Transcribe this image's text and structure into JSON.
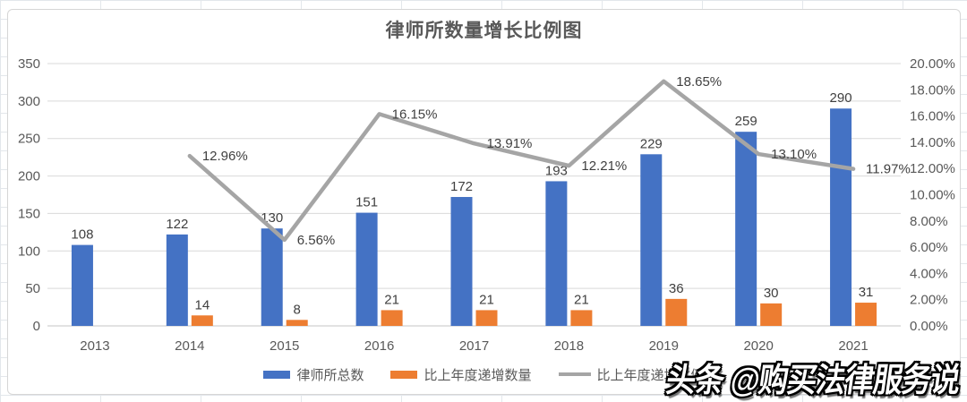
{
  "watermark": {
    "text": "头条 @购买法律服务说"
  },
  "colors": {
    "bar_total": "#4472C4",
    "bar_increase": "#ED7D31",
    "line_ratio": "#A5A5A5",
    "gridline": "#D9D9D9",
    "axis_text": "#595959",
    "data_label_text": "#404040",
    "chart_border": "#D6D6D6",
    "sheet_gridline": "#E3E7EB"
  },
  "chart_data": {
    "type": "combo",
    "title": "律师所数量增长比例图",
    "categories": [
      "2013",
      "2014",
      "2015",
      "2016",
      "2017",
      "2018",
      "2019",
      "2020",
      "2021"
    ],
    "series": [
      {
        "name": "律师所总数",
        "type": "bar",
        "axis": "left",
        "color": "#4472C4",
        "values": [
          108,
          122,
          130,
          151,
          172,
          193,
          229,
          259,
          290
        ]
      },
      {
        "name": "比上年度递增数量",
        "type": "bar",
        "axis": "left",
        "color": "#ED7D31",
        "values": [
          null,
          14,
          8,
          21,
          21,
          21,
          36,
          30,
          31
        ]
      },
      {
        "name": "比上年度递增比例",
        "type": "line",
        "axis": "right",
        "color": "#A5A5A5",
        "values": [
          null,
          12.96,
          6.56,
          16.15,
          13.91,
          12.21,
          18.65,
          13.1,
          11.97
        ],
        "labels": [
          "",
          "12.96%",
          "6.56%",
          "16.15%",
          "13.91%",
          "12.21%",
          "18.65%",
          "13.10%",
          "11.97%"
        ]
      }
    ],
    "left_axis": {
      "min": 0,
      "max": 350,
      "step": 50,
      "ticks": [
        "0",
        "50",
        "100",
        "150",
        "200",
        "250",
        "300",
        "350"
      ]
    },
    "right_axis": {
      "min": 0,
      "max": 20,
      "step": 2,
      "ticks": [
        "0.00%",
        "2.00%",
        "4.00%",
        "6.00%",
        "8.00%",
        "10.00%",
        "12.00%",
        "14.00%",
        "16.00%",
        "18.00%",
        "20.00%"
      ]
    },
    "grid": true,
    "legend_position": "bottom"
  }
}
